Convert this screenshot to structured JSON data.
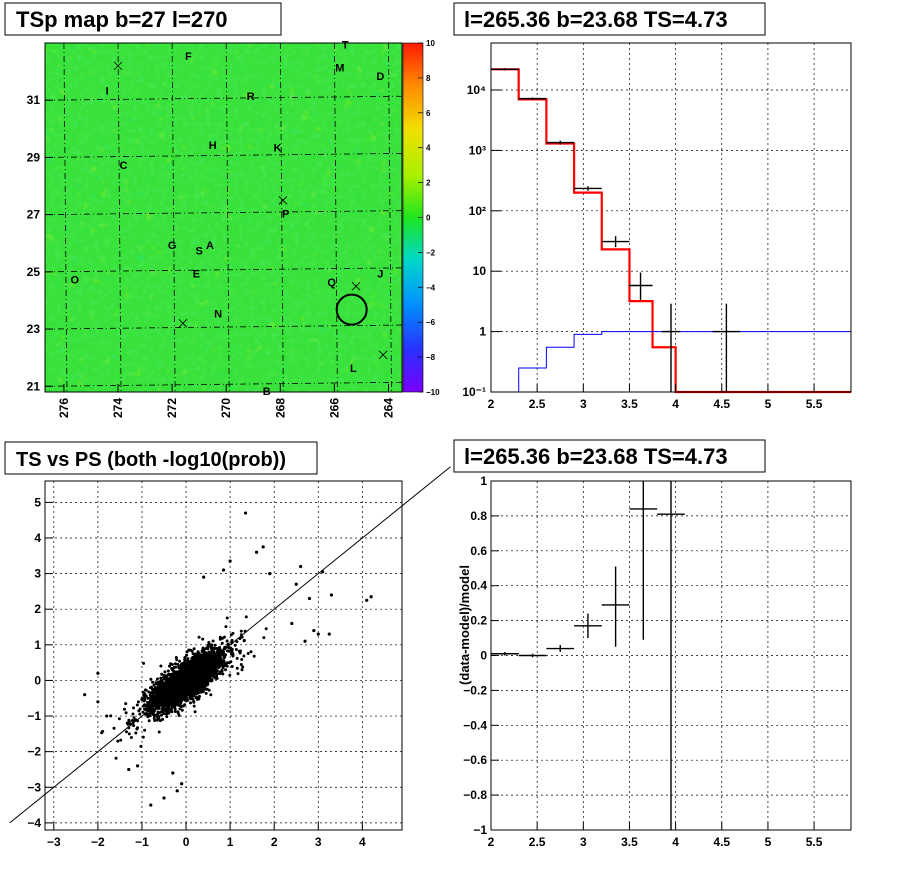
{
  "panels": {
    "map": {
      "title": "TSp map b=27 l=270"
    },
    "spectrum": {
      "title": "l=265.36 b=23.68 TS=4.73"
    },
    "scatter": {
      "title": "TS vs PS (both -log10(prob))"
    },
    "residual": {
      "title": "l=265.36 b=23.68 TS=4.73"
    }
  },
  "chart_data": [
    {
      "type": "heatmap",
      "title": "TSp map b=27 l=270",
      "x_axis_reversed": true,
      "xlim": [
        276.7,
        263.5
      ],
      "ylim": [
        20.8,
        33.0
      ],
      "x_ticks": [
        "276",
        "274",
        "272",
        "270",
        "268",
        "266",
        "264"
      ],
      "y_ticks": [
        "21",
        "23",
        "25",
        "27",
        "29",
        "31"
      ],
      "colorbar_ticks": [
        "10",
        "8",
        "6",
        "4",
        "2",
        "0",
        "−2",
        "−4",
        "−6",
        "−8",
        "−10"
      ],
      "colorbar_range": [
        -10,
        10
      ],
      "colors": {
        "dominant": "#39e639",
        "background_low": "#00cc00",
        "hotspots": "#d6f200",
        "coldspots": "#00d8d0"
      },
      "source_labels": [
        {
          "text": "T",
          "l": 265.6,
          "b": 32.8
        },
        {
          "text": "M",
          "l": 265.8,
          "b": 32.0
        },
        {
          "text": "D",
          "l": 264.3,
          "b": 31.7
        },
        {
          "text": "F",
          "l": 271.4,
          "b": 32.4
        },
        {
          "text": "I",
          "l": 274.4,
          "b": 31.2
        },
        {
          "text": "R",
          "l": 269.1,
          "b": 31.0
        },
        {
          "text": "H",
          "l": 270.5,
          "b": 29.3
        },
        {
          "text": "K",
          "l": 268.1,
          "b": 29.2
        },
        {
          "text": "C",
          "l": 273.8,
          "b": 28.6
        },
        {
          "text": "P",
          "l": 267.8,
          "b": 26.9
        },
        {
          "text": "G",
          "l": 272.0,
          "b": 25.8
        },
        {
          "text": "A",
          "l": 270.6,
          "b": 25.8
        },
        {
          "text": "S",
          "l": 271.0,
          "b": 25.6
        },
        {
          "text": "E",
          "l": 271.1,
          "b": 24.8
        },
        {
          "text": "J",
          "l": 264.3,
          "b": 24.8
        },
        {
          "text": "O",
          "l": 275.6,
          "b": 24.6
        },
        {
          "text": "Q",
          "l": 266.1,
          "b": 24.5
        },
        {
          "text": "N",
          "l": 270.3,
          "b": 23.4
        },
        {
          "text": "L",
          "l": 265.3,
          "b": 21.5
        },
        {
          "text": "B",
          "l": 268.5,
          "b": 20.7
        }
      ],
      "crosses": [
        {
          "l": 274.0,
          "b": 32.2
        },
        {
          "l": 267.9,
          "b": 27.5
        },
        {
          "l": 265.2,
          "b": 24.5
        },
        {
          "l": 271.6,
          "b": 23.2
        },
        {
          "l": 264.2,
          "b": 22.1
        }
      ],
      "highlight_circle": {
        "l": 265.36,
        "b": 23.68
      }
    },
    {
      "type": "line",
      "title": "l=265.36 b=23.68 TS=4.73",
      "y_scale": "log",
      "xlim": [
        2,
        5.9
      ],
      "ylim": [
        0.1,
        60000
      ],
      "x_ticks": [
        "2",
        "2.5",
        "3",
        "3.5",
        "4",
        "4.5",
        "5",
        "5.5"
      ],
      "y_ticks": [
        {
          "v": 0.1,
          "label": "10⁻¹"
        },
        {
          "v": 1,
          "label": "1"
        },
        {
          "v": 10,
          "label": "10"
        },
        {
          "v": 100,
          "label": "10²"
        },
        {
          "v": 1000,
          "label": "10³"
        },
        {
          "v": 10000,
          "label": "10⁴"
        }
      ],
      "bin_edges": [
        2.0,
        2.3,
        2.6,
        2.9,
        3.2,
        3.5,
        3.75,
        4.0,
        4.2,
        4.4,
        4.6,
        4.8,
        5.0,
        5.2,
        5.4,
        5.6,
        5.8,
        5.9
      ],
      "series": [
        {
          "color": "#ff0000",
          "values": [
            22000,
            7000,
            1300,
            200,
            23,
            3.2,
            0.55,
            0.1,
            0.1,
            0.1,
            0.1,
            0.1,
            0.1,
            0.1,
            0.1,
            0.1,
            0.1
          ]
        },
        {
          "color": "#0000ff",
          "values": [
            0.1,
            0.25,
            0.55,
            0.9,
            1.0,
            1.0,
            1.0,
            1.0,
            1.0,
            1.0,
            1.0,
            1.0,
            1.0,
            1.0,
            1.0,
            1.0,
            1.0
          ]
        },
        {
          "color": "#000000",
          "points": [
            {
              "x": 2.15,
              "y": 22000,
              "dx": 0.15,
              "lo": 21000,
              "hi": 23000
            },
            {
              "x": 2.45,
              "y": 7200,
              "dx": 0.15,
              "lo": 6900,
              "hi": 7500
            },
            {
              "x": 2.75,
              "y": 1350,
              "dx": 0.15,
              "lo": 1250,
              "hi": 1450
            },
            {
              "x": 3.05,
              "y": 235,
              "dx": 0.15,
              "lo": 215,
              "hi": 255
            },
            {
              "x": 3.35,
              "y": 31,
              "dx": 0.15,
              "lo": 25,
              "hi": 38
            },
            {
              "x": 3.62,
              "y": 5.8,
              "dx": 0.13,
              "lo": 3.3,
              "hi": 9.5
            },
            {
              "x": 3.95,
              "y": 1.0,
              "dx": 0.1,
              "lo": 0.1,
              "hi": 2.9
            },
            {
              "x": 4.55,
              "y": 1.0,
              "dx": 0.15,
              "lo": 0.1,
              "hi": 2.9
            }
          ]
        }
      ]
    },
    {
      "type": "scatter",
      "title": "TS vs PS (both -log10(prob))",
      "xlim": [
        -3.2,
        4.9
      ],
      "ylim": [
        -4.2,
        5.6
      ],
      "x_ticks": [
        "−3",
        "−2",
        "−1",
        "0",
        "1",
        "2",
        "3",
        "4"
      ],
      "y_ticks": [
        "−4",
        "−3",
        "−2",
        "−1",
        "0",
        "1",
        "2",
        "3",
        "4",
        "5"
      ],
      "reference_line": {
        "from": [
          -4.0,
          -4.0
        ],
        "to": [
          6.0,
          6.0
        ]
      },
      "outliers": [
        [
          1.35,
          4.7
        ],
        [
          1.75,
          3.75
        ],
        [
          2.6,
          3.2
        ],
        [
          3.1,
          3.05
        ],
        [
          3.3,
          2.4
        ],
        [
          4.1,
          2.25
        ],
        [
          4.2,
          2.35
        ],
        [
          0.85,
          3.1
        ],
        [
          1.0,
          3.35
        ],
        [
          -0.2,
          -3.1
        ],
        [
          -0.8,
          -3.5
        ],
        [
          -0.5,
          -3.3
        ],
        [
          -1.3,
          -2.5
        ],
        [
          -1.1,
          -2.4
        ],
        [
          -2.3,
          -0.4
        ],
        [
          -2.0,
          -0.6
        ],
        [
          -2.0,
          0.2
        ],
        [
          -1.8,
          -1.0
        ],
        [
          2.4,
          1.6
        ],
        [
          2.9,
          1.4
        ],
        [
          3.0,
          1.3
        ],
        [
          3.25,
          1.3
        ],
        [
          2.8,
          2.3
        ],
        [
          2.5,
          2.7
        ],
        [
          1.9,
          3.0
        ],
        [
          0.4,
          2.9
        ],
        [
          1.6,
          3.6
        ],
        [
          -0.1,
          -2.9
        ],
        [
          -0.3,
          -2.6
        ],
        [
          2.7,
          1.1
        ]
      ]
    },
    {
      "type": "scatter",
      "title": "l=265.36 b=23.68 TS=4.73",
      "ylabel": "(data-model)/model",
      "xlim": [
        2,
        5.9
      ],
      "ylim": [
        -1,
        1
      ],
      "x_ticks": [
        "2",
        "2.5",
        "3",
        "3.5",
        "4",
        "4.5",
        "5",
        "5.5"
      ],
      "y_ticks": [
        "−1",
        "−0.8",
        "−0.6",
        "−0.4",
        "−0.2",
        "0",
        "0.2",
        "0.4",
        "0.6",
        "0.8",
        "1"
      ],
      "points": [
        {
          "x": 2.15,
          "y": 0.01,
          "dx": 0.15,
          "lo": 0.0,
          "hi": 0.02
        },
        {
          "x": 2.45,
          "y": 0.0,
          "dx": 0.15,
          "lo": -0.01,
          "hi": 0.01
        },
        {
          "x": 2.75,
          "y": 0.04,
          "dx": 0.15,
          "lo": 0.02,
          "hi": 0.06
        },
        {
          "x": 3.05,
          "y": 0.17,
          "dx": 0.15,
          "lo": 0.1,
          "hi": 0.24
        },
        {
          "x": 3.35,
          "y": 0.29,
          "dx": 0.15,
          "lo": 0.05,
          "hi": 0.51
        },
        {
          "x": 3.65,
          "y": 0.84,
          "dx": 0.15,
          "lo": 0.09,
          "hi": 1.0
        },
        {
          "x": 3.95,
          "y": 0.81,
          "dx": 0.15,
          "lo": -1.0,
          "hi": 1.0
        }
      ]
    }
  ]
}
